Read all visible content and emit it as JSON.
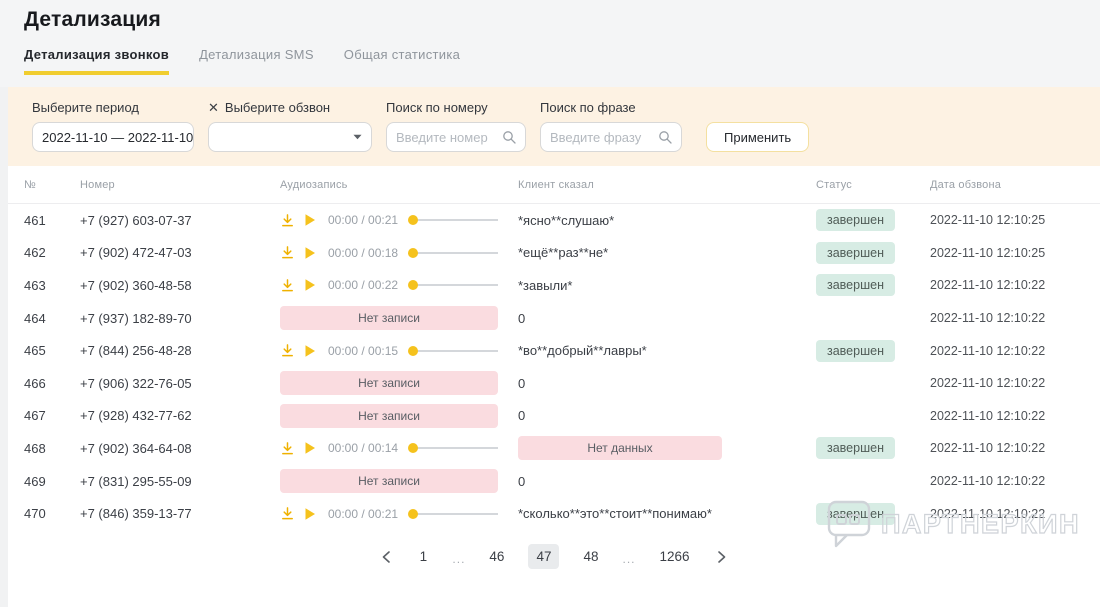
{
  "page": {
    "title": "Детализация"
  },
  "tabs": {
    "items": [
      {
        "label": "Детализация звонков",
        "active": true
      },
      {
        "label": "Детализация SMS",
        "active": false
      },
      {
        "label": "Общая статистика",
        "active": false
      }
    ]
  },
  "filters": {
    "period": {
      "label": "Выберите период",
      "value": "2022-11-10 — 2022-11-10"
    },
    "campaign": {
      "label": "Выберите обзвон",
      "clear_icon": "✕",
      "value": ""
    },
    "number_search": {
      "label": "Поиск по номеру",
      "placeholder": "Введите номер"
    },
    "phrase_search": {
      "label": "Поиск по фразе",
      "placeholder": "Введите фразу"
    },
    "apply_label": "Применить"
  },
  "table": {
    "columns": [
      "№",
      "Номер",
      "Аудиозапись",
      "Клиент сказал",
      "Статус",
      "Дата обзвона"
    ],
    "no_record_label": "Нет записи",
    "no_data_label": "Нет данных",
    "rows": [
      {
        "num": "461",
        "phone": "+7 (927) 603-07-37",
        "audio_time": "00:00 / 00:21",
        "client": "*ясно**слушаю*",
        "client_no_data": false,
        "status": "завершен",
        "date": "2022-11-10 12:10:25"
      },
      {
        "num": "462",
        "phone": "+7 (902) 472-47-03",
        "audio_time": "00:00 / 00:18",
        "client": "*ещё**раз**не*",
        "client_no_data": false,
        "status": "завершен",
        "date": "2022-11-10 12:10:25"
      },
      {
        "num": "463",
        "phone": "+7 (902) 360-48-58",
        "audio_time": "00:00 / 00:22",
        "client": "*завыли*",
        "client_no_data": false,
        "status": "завершен",
        "date": "2022-11-10 12:10:22"
      },
      {
        "num": "464",
        "phone": "+7 (937) 182-89-70",
        "audio_time": "",
        "client": "0",
        "client_no_data": false,
        "status": "",
        "date": "2022-11-10 12:10:22"
      },
      {
        "num": "465",
        "phone": "+7 (844) 256-48-28",
        "audio_time": "00:00 / 00:15",
        "client": "*во**добрый**лавры*",
        "client_no_data": false,
        "status": "завершен",
        "date": "2022-11-10 12:10:22"
      },
      {
        "num": "466",
        "phone": "+7 (906) 322-76-05",
        "audio_time": "",
        "client": "0",
        "client_no_data": false,
        "status": "",
        "date": "2022-11-10 12:10:22"
      },
      {
        "num": "467",
        "phone": "+7 (928) 432-77-62",
        "audio_time": "",
        "client": "0",
        "client_no_data": false,
        "status": "",
        "date": "2022-11-10 12:10:22"
      },
      {
        "num": "468",
        "phone": "+7 (902) 364-64-08",
        "audio_time": "00:00 / 00:14",
        "client": "",
        "client_no_data": true,
        "status": "завершен",
        "date": "2022-11-10 12:10:22"
      },
      {
        "num": "469",
        "phone": "+7 (831) 295-55-09",
        "audio_time": "",
        "client": "0",
        "client_no_data": false,
        "status": "",
        "date": "2022-11-10 12:10:22"
      },
      {
        "num": "470",
        "phone": "+7 (846) 359-13-77",
        "audio_time": "00:00 / 00:21",
        "client": "*сколько**это**стоит**понимаю*",
        "client_no_data": false,
        "status": "завершен",
        "date": "2022-11-10 12:10:22"
      }
    ]
  },
  "pagination": {
    "pages": [
      {
        "label": "1",
        "active": false,
        "ellipsis": false
      },
      {
        "label": "...",
        "active": false,
        "ellipsis": true
      },
      {
        "label": "46",
        "active": false,
        "ellipsis": false
      },
      {
        "label": "47",
        "active": true,
        "ellipsis": false
      },
      {
        "label": "48",
        "active": false,
        "ellipsis": false
      },
      {
        "label": "...",
        "active": false,
        "ellipsis": true
      },
      {
        "label": "1266",
        "active": false,
        "ellipsis": false
      }
    ]
  },
  "watermark": {
    "text": "ПАРТНЕРКИН"
  },
  "colors": {
    "accent_yellow": "#f0cd2f",
    "filter_bg": "#fdf2e3",
    "pink_badge_bg": "#fadce0",
    "mint_badge_bg": "#d7ece4"
  }
}
